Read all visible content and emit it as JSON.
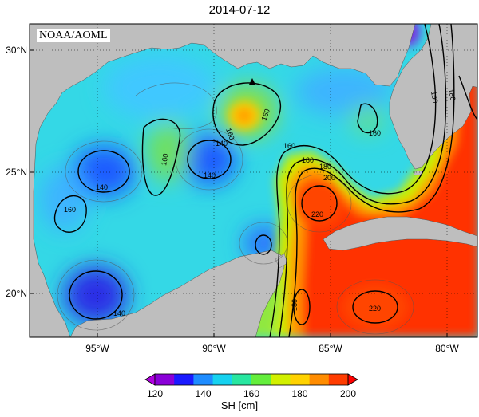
{
  "title": "2014-07-12",
  "credit": "NOAA/AOML",
  "lat_labels": [
    "30°N",
    "25°N",
    "20°N"
  ],
  "lon_labels": [
    "95°W",
    "90°W",
    "85°W",
    "80°W"
  ],
  "contour_labels": [
    "160",
    "160",
    "160",
    "160",
    "140",
    "140",
    "140",
    "160",
    "140",
    "160",
    "180",
    "180",
    "200",
    "220",
    "220",
    "180",
    "160",
    "180"
  ],
  "colorbar": {
    "ticks": [
      "120",
      "140",
      "160",
      "180",
      "200"
    ],
    "label": "SH [cm]",
    "colors": [
      "#8a00d8",
      "#1a1aff",
      "#1e8cff",
      "#16d2f0",
      "#28e6a0",
      "#64ee3c",
      "#d2f000",
      "#ffd200",
      "#ff8c00",
      "#ff3c00"
    ]
  },
  "colors": {
    "land": "#bebebe",
    "ocean_base": "#3cdcdc"
  }
}
